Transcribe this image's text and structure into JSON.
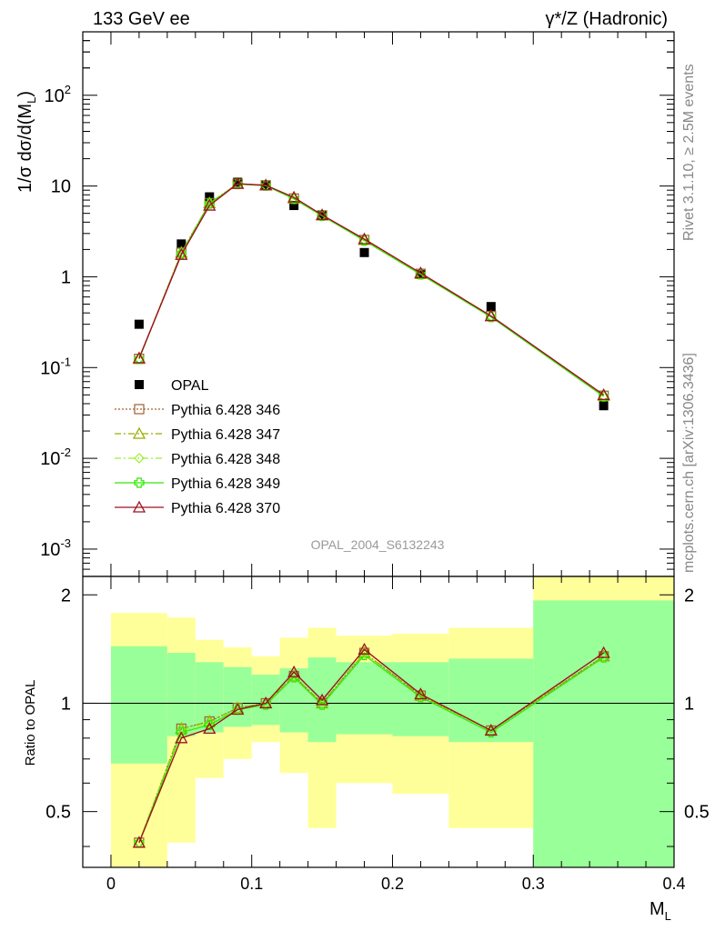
{
  "header": {
    "left": "133 GeV ee",
    "right": "γ*/Z (Hadronic)"
  },
  "side_labels": {
    "rivet": "Rivet 3.1.10, ≥ 2.5M events",
    "mcplots": "mcplots.cern.ch [arXiv:1306.3436]"
  },
  "watermark": "OPAL_2004_S6132243",
  "colors": {
    "data": "#000000",
    "p346": "#a06030",
    "p347": "#9aac00",
    "p348": "#9af032",
    "p349": "#32e600",
    "p370": "#a01020",
    "band_inner": "#99ff99",
    "band_outer": "#ffff99"
  },
  "chart_data": [
    {
      "type": "scatter",
      "panel": "main",
      "ylabel": "1/σ dσ/d(M_L)",
      "yscale": "log",
      "ylim": [
        0.0005,
        500
      ],
      "xlim": [
        -0.02,
        0.4
      ],
      "y_ticks": [
        "10^-3",
        "10^-2",
        "10^-1",
        "1",
        "10",
        "10^2"
      ],
      "legend_position": "middle-left",
      "series": [
        {
          "name": "OPAL",
          "marker": "filled-square",
          "x": [
            0.02,
            0.05,
            0.07,
            0.09,
            0.11,
            0.13,
            0.15,
            0.18,
            0.22,
            0.27,
            0.35
          ],
          "y": [
            0.3,
            2.3,
            7.6,
            11.0,
            10.2,
            6.1,
            4.8,
            1.85,
            1.06,
            0.47,
            0.038
          ]
        },
        {
          "name": "Pythia 6.428 346",
          "style": "dotted",
          "marker": "open-square",
          "x": [
            0.02,
            0.05,
            0.07,
            0.09,
            0.11,
            0.13,
            0.15,
            0.18,
            0.22,
            0.27,
            0.35
          ],
          "y": [
            0.125,
            1.85,
            6.5,
            10.6,
            10.2,
            7.3,
            4.75,
            2.55,
            1.08,
            0.37,
            0.049
          ]
        },
        {
          "name": "Pythia 6.428 347",
          "style": "dash-dot",
          "marker": "open-triangle",
          "x": [
            0.02,
            0.05,
            0.07,
            0.09,
            0.11,
            0.13,
            0.15,
            0.18,
            0.22,
            0.27,
            0.35
          ],
          "y": [
            0.125,
            1.85,
            6.5,
            10.6,
            10.2,
            7.3,
            4.75,
            2.55,
            1.08,
            0.37,
            0.049
          ]
        },
        {
          "name": "Pythia 6.428 348",
          "style": "dash-dot",
          "marker": "open-diamond",
          "x": [
            0.02,
            0.05,
            0.07,
            0.09,
            0.11,
            0.13,
            0.15,
            0.18,
            0.22,
            0.27,
            0.35
          ],
          "y": [
            0.124,
            1.83,
            6.45,
            10.5,
            10.1,
            7.2,
            4.72,
            2.52,
            1.07,
            0.365,
            0.048
          ]
        },
        {
          "name": "Pythia 6.428 349",
          "style": "solid",
          "marker": "open-cross",
          "x": [
            0.02,
            0.05,
            0.07,
            0.09,
            0.11,
            0.13,
            0.15,
            0.18,
            0.22,
            0.27,
            0.35
          ],
          "y": [
            0.124,
            1.8,
            6.4,
            10.5,
            10.1,
            7.2,
            4.7,
            2.5,
            1.06,
            0.36,
            0.048
          ]
        },
        {
          "name": "Pythia 6.428 370",
          "style": "solid",
          "marker": "open-triangle",
          "x": [
            0.02,
            0.05,
            0.07,
            0.09,
            0.11,
            0.13,
            0.15,
            0.18,
            0.22,
            0.27,
            0.35
          ],
          "y": [
            0.127,
            1.75,
            6.1,
            10.6,
            10.2,
            7.5,
            4.8,
            2.6,
            1.1,
            0.37,
            0.05
          ]
        }
      ]
    },
    {
      "type": "line",
      "panel": "ratio",
      "ylabel": "Ratio to OPAL",
      "xlabel": "M_L",
      "ylim": [
        0.35,
        2.25
      ],
      "xlim": [
        -0.02,
        0.4
      ],
      "x_ticks": [
        "0",
        "0.1",
        "0.2",
        "0.3",
        "0.4"
      ],
      "y_ticks": [
        "0.5",
        "1",
        "2"
      ],
      "bands": [
        {
          "xlo": 0.0,
          "xhi": 0.04,
          "inner": [
            0.68,
            1.44
          ],
          "outer": [
            0.35,
            1.78
          ]
        },
        {
          "xlo": 0.04,
          "xhi": 0.06,
          "inner": [
            0.81,
            1.38
          ],
          "outer": [
            0.41,
            1.73
          ]
        },
        {
          "xlo": 0.06,
          "xhi": 0.08,
          "inner": [
            0.83,
            1.3
          ],
          "outer": [
            0.62,
            1.5
          ]
        },
        {
          "xlo": 0.08,
          "xhi": 0.1,
          "inner": [
            0.86,
            1.26
          ],
          "outer": [
            0.7,
            1.43
          ]
        },
        {
          "xlo": 0.1,
          "xhi": 0.12,
          "inner": [
            0.87,
            1.2
          ],
          "outer": [
            0.78,
            1.35
          ]
        },
        {
          "xlo": 0.12,
          "xhi": 0.14,
          "inner": [
            0.83,
            1.25
          ],
          "outer": [
            0.64,
            1.52
          ]
        },
        {
          "xlo": 0.14,
          "xhi": 0.16,
          "inner": [
            0.78,
            1.34
          ],
          "outer": [
            0.45,
            1.62
          ]
        },
        {
          "xlo": 0.16,
          "xhi": 0.2,
          "inner": [
            0.82,
            1.3
          ],
          "outer": [
            0.6,
            1.54
          ]
        },
        {
          "xlo": 0.2,
          "xhi": 0.24,
          "inner": [
            0.81,
            1.3
          ],
          "outer": [
            0.56,
            1.56
          ]
        },
        {
          "xlo": 0.24,
          "xhi": 0.3,
          "inner": [
            0.78,
            1.33
          ],
          "outer": [
            0.45,
            1.62
          ]
        },
        {
          "xlo": 0.3,
          "xhi": 0.4,
          "inner": [
            0.35,
            1.93
          ],
          "outer": [
            0.35,
            2.25
          ]
        }
      ],
      "series": [
        {
          "name": "Pythia 6.428 346",
          "x": [
            0.02,
            0.05,
            0.07,
            0.09,
            0.11,
            0.13,
            0.15,
            0.18,
            0.22,
            0.27,
            0.35
          ],
          "y": [
            0.41,
            0.85,
            0.89,
            0.97,
            1.0,
            1.19,
            1.0,
            1.38,
            1.05,
            0.84,
            1.35
          ]
        },
        {
          "name": "Pythia 6.428 347",
          "x": [
            0.02,
            0.05,
            0.07,
            0.09,
            0.11,
            0.13,
            0.15,
            0.18,
            0.22,
            0.27,
            0.35
          ],
          "y": [
            0.41,
            0.85,
            0.89,
            0.97,
            1.0,
            1.19,
            1.0,
            1.38,
            1.05,
            0.84,
            1.35
          ]
        },
        {
          "name": "Pythia 6.428 348",
          "x": [
            0.02,
            0.05,
            0.07,
            0.09,
            0.11,
            0.13,
            0.15,
            0.18,
            0.22,
            0.27,
            0.35
          ],
          "y": [
            0.41,
            0.84,
            0.88,
            0.96,
            1.0,
            1.18,
            0.99,
            1.37,
            1.04,
            0.83,
            1.34
          ]
        },
        {
          "name": "Pythia 6.428 349",
          "x": [
            0.02,
            0.05,
            0.07,
            0.09,
            0.11,
            0.13,
            0.15,
            0.18,
            0.22,
            0.27,
            0.35
          ],
          "y": [
            0.41,
            0.83,
            0.87,
            0.96,
            0.99,
            1.18,
            0.99,
            1.36,
            1.04,
            0.83,
            1.34
          ]
        },
        {
          "name": "Pythia 6.428 370",
          "x": [
            0.02,
            0.05,
            0.07,
            0.09,
            0.11,
            0.13,
            0.15,
            0.18,
            0.22,
            0.27,
            0.35
          ],
          "y": [
            0.41,
            0.8,
            0.85,
            0.96,
            1.0,
            1.22,
            1.02,
            1.41,
            1.06,
            0.84,
            1.38
          ]
        }
      ]
    }
  ]
}
